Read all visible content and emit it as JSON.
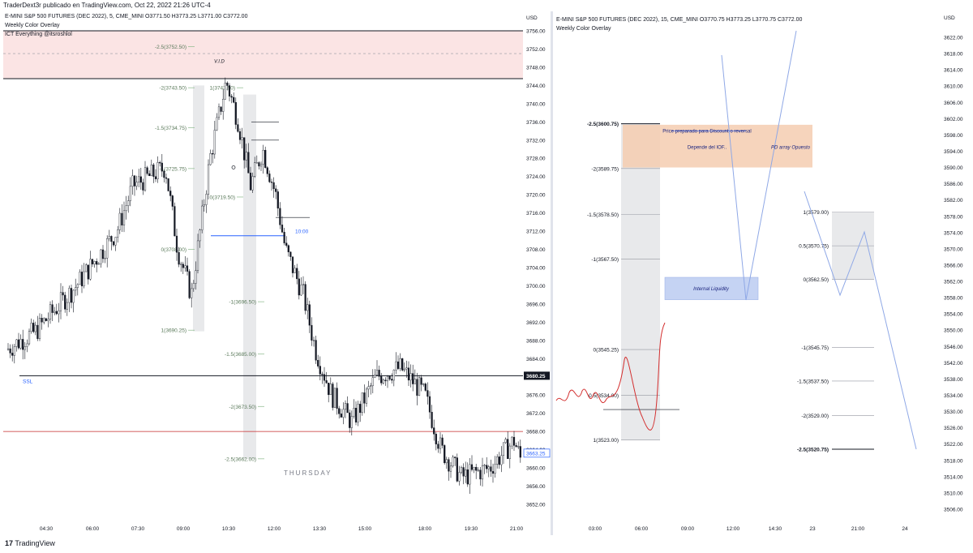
{
  "publish_line": "TraderDext3r publicado en TradingView.com, Oct 22, 2022 21:26 UTC-4",
  "left_chart": {
    "symbol_line": "E-MINI S&P 500 FUTURES (DEC 2022), 5, CME_MINI  O3771.50  H3773.25  L3771.00  C3772.00",
    "indicator_1": "Weekly Color Overlay",
    "indicator_2": "ICT Everything @itsroshlol",
    "currency": "USD",
    "price_ticks": [
      "3756.00",
      "3752.00",
      "3748.00",
      "3744.00",
      "3740.00",
      "3736.00",
      "3732.00",
      "3728.00",
      "3724.00",
      "3720.00",
      "3716.00",
      "3712.00",
      "3708.00",
      "3704.00",
      "3700.00",
      "3696.00",
      "3692.00",
      "3688.00",
      "3684.00",
      "3680.00",
      "3676.00",
      "3672.00",
      "3668.00",
      "3664.00",
      "3660.00",
      "3656.00",
      "3652.00"
    ],
    "time_ticks": [
      "04:30",
      "06:00",
      "07:30",
      "09:00",
      "10:30",
      "12:00",
      "13:30",
      "15:00",
      "18:00",
      "19:30",
      "21:00"
    ],
    "last_price": "3680.25",
    "current_price": "3663.25",
    "fib_labels": [
      "-2.5(3752.50)",
      "-2(3743.50)",
      "-1.5(3734.75)",
      "-1(3725.75)",
      "0(3708.00)",
      "1(3690.25)",
      "1(3743.50)",
      "0(3719.50)",
      "-1(3696.50)",
      "-1.5(3685.00)",
      "-2(3673.50)",
      "-2.5(3662.00)"
    ],
    "vid_label": "V.I.D",
    "ssl_label": "SSL",
    "time_marker": "10:00",
    "day_label": "THURSDAY"
  },
  "right_chart": {
    "symbol_line": "E-MINI S&P 500 FUTURES (DEC 2022), 15, CME_MINI  O3770.75  H3773.25  L3770.75  C3772.00",
    "indicator_1": "Weekly Color Overlay",
    "currency": "USD",
    "price_ticks": [
      "3622.00",
      "3618.00",
      "3614.00",
      "3610.00",
      "3606.00",
      "3602.00",
      "3598.00",
      "3594.00",
      "3590.00",
      "3586.00",
      "3582.00",
      "3578.00",
      "3574.00",
      "3570.00",
      "3566.00",
      "3562.00",
      "3558.00",
      "3554.00",
      "3550.00",
      "3546.00",
      "3542.00",
      "3538.00",
      "3534.00",
      "3530.00",
      "3526.00",
      "3522.00",
      "3518.00",
      "3514.00",
      "3510.00",
      "3506.00"
    ],
    "time_ticks": [
      "03:00",
      "06:00",
      "09:00",
      "12:00",
      "14:30",
      "23",
      "21:00",
      "24"
    ],
    "fib_left": [
      "-2.5(3600.75)",
      "-2(3589.75)",
      "-1.5(3578.50)",
      "-1(3567.50)",
      "0(3545.25)",
      "0.5(3534.00)",
      "1(3523.00)"
    ],
    "fib_right": [
      "1(3579.00)",
      "0.5(3570.75)",
      "0(3562.50)",
      "-1(3545.75)",
      "-1.5(3537.50)",
      "-2(3529.00)",
      "-2.5(3520.75)"
    ],
    "annotation_1": "Price preparado para Discount o reversal",
    "annotation_2": "Depende del IOF..",
    "annotation_3": "PD array Opuesto",
    "annotation_4": "Internal Liquidity"
  },
  "brand": "TradingView",
  "colors": {
    "bull": "#131722",
    "premium_zone": "#fbe4e4",
    "pd_zone": "#f5cdb0",
    "liquidity_zone": "#c5d3f3",
    "blue_line": "#2962ff",
    "red_line": "#c62828",
    "gray_box": "#e8e9eb"
  }
}
